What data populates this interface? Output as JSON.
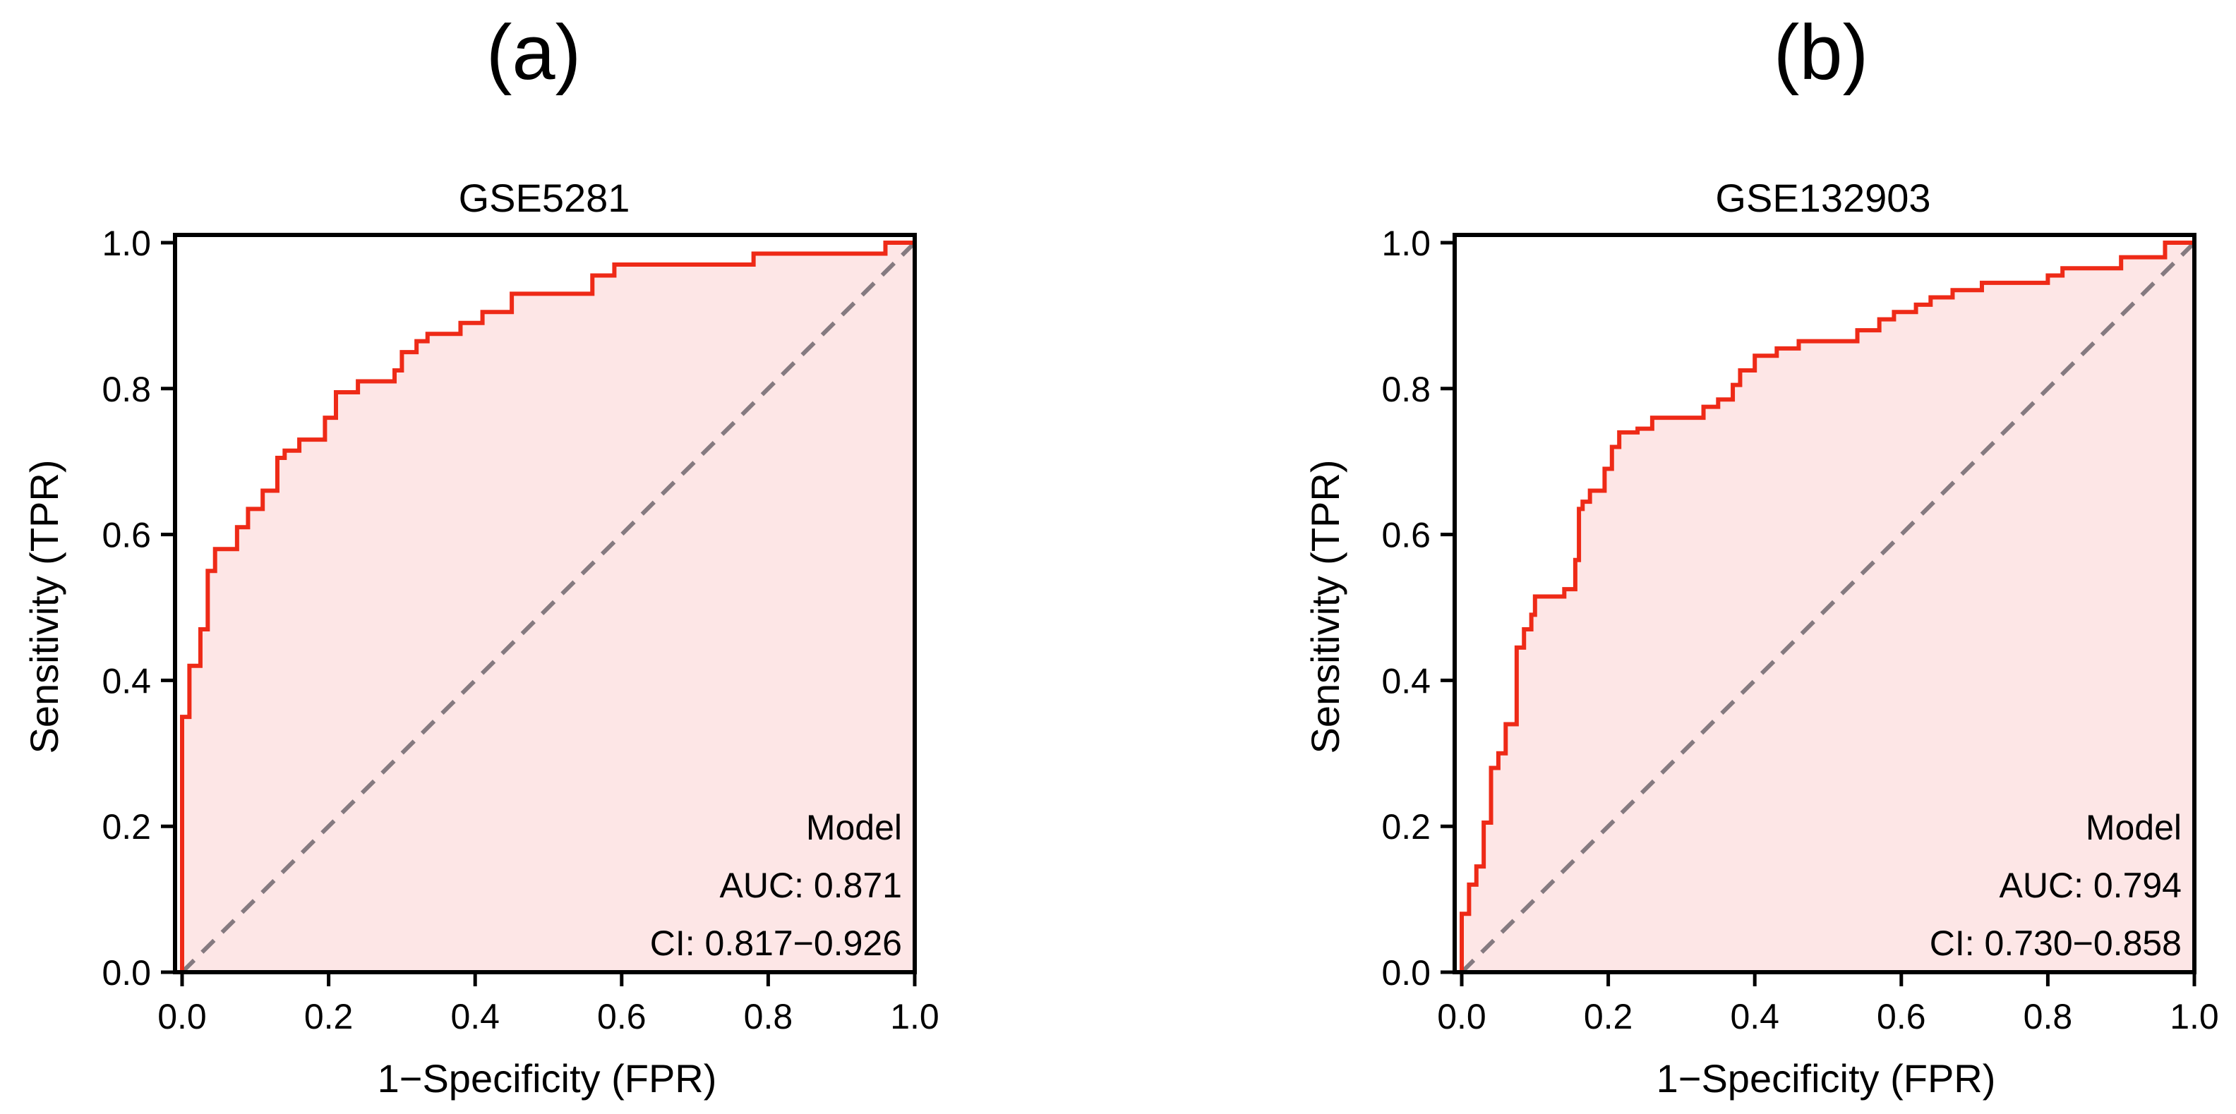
{
  "figure": {
    "panels": [
      {
        "letter": "(a)",
        "title": "GSE5281",
        "xlabel": "1−Specificity (FPR)",
        "ylabel": "Sensitivity (TPR)",
        "annotation": {
          "model": "Model",
          "auc": "AUC: 0.871",
          "ci": "CI: 0.817−0.926"
        }
      },
      {
        "letter": "(b)",
        "title": "GSE132903",
        "xlabel": "1−Specificity (FPR)",
        "ylabel": "Sensitivity (TPR)",
        "annotation": {
          "model": "Model",
          "auc": "AUC: 0.794",
          "ci": "CI: 0.730−0.858"
        }
      }
    ]
  },
  "colors": {
    "roc_line": "#ee2a17",
    "roc_fill": "#fde6e6",
    "diagonal": "#857a80",
    "axis": "#000000"
  },
  "chart_data": [
    {
      "type": "line",
      "title": "GSE5281",
      "xlabel": "1−Specificity (FPR)",
      "ylabel": "Sensitivity (TPR)",
      "xlim": [
        0,
        1
      ],
      "ylim": [
        0,
        1
      ],
      "xticks": [
        "0.0",
        "0.2",
        "0.4",
        "0.6",
        "0.8",
        "1.0"
      ],
      "yticks": [
        "0.0",
        "0.2",
        "0.4",
        "0.6",
        "0.8",
        "1.0"
      ],
      "grid": false,
      "series": [
        {
          "name": "Model",
          "x": [
            0.0,
            0.0,
            0.01,
            0.01,
            0.025,
            0.025,
            0.035,
            0.035,
            0.045,
            0.045,
            0.075,
            0.075,
            0.09,
            0.09,
            0.11,
            0.11,
            0.13,
            0.13,
            0.14,
            0.14,
            0.16,
            0.16,
            0.195,
            0.195,
            0.21,
            0.21,
            0.24,
            0.24,
            0.29,
            0.29,
            0.3,
            0.3,
            0.32,
            0.32,
            0.335,
            0.335,
            0.38,
            0.38,
            0.41,
            0.41,
            0.45,
            0.45,
            0.56,
            0.56,
            0.59,
            0.59,
            0.78,
            0.78,
            0.96,
            0.96,
            1.0
          ],
          "y": [
            0.0,
            0.35,
            0.35,
            0.42,
            0.42,
            0.47,
            0.47,
            0.55,
            0.55,
            0.58,
            0.58,
            0.61,
            0.61,
            0.635,
            0.635,
            0.66,
            0.66,
            0.705,
            0.705,
            0.715,
            0.715,
            0.73,
            0.73,
            0.76,
            0.76,
            0.795,
            0.795,
            0.81,
            0.81,
            0.825,
            0.825,
            0.85,
            0.85,
            0.865,
            0.865,
            0.875,
            0.875,
            0.89,
            0.89,
            0.905,
            0.905,
            0.93,
            0.93,
            0.955,
            0.955,
            0.97,
            0.97,
            0.985,
            0.985,
            1.0,
            1.0
          ]
        }
      ],
      "legend": "Model",
      "auc": 0.871,
      "ci": [
        0.817,
        0.926
      ]
    },
    {
      "type": "line",
      "title": "GSE132903",
      "xlabel": "1−Specificity (FPR)",
      "ylabel": "Sensitivity (TPR)",
      "xlim": [
        0,
        1
      ],
      "ylim": [
        0,
        1
      ],
      "xticks": [
        "0.0",
        "0.2",
        "0.4",
        "0.6",
        "0.8",
        "1.0"
      ],
      "yticks": [
        "0.0",
        "0.2",
        "0.4",
        "0.6",
        "0.8",
        "1.0"
      ],
      "grid": false,
      "series": [
        {
          "name": "Model",
          "x": [
            0.0,
            0.0,
            0.01,
            0.01,
            0.02,
            0.02,
            0.03,
            0.03,
            0.04,
            0.04,
            0.05,
            0.05,
            0.06,
            0.06,
            0.075,
            0.075,
            0.085,
            0.085,
            0.095,
            0.095,
            0.1,
            0.1,
            0.14,
            0.14,
            0.155,
            0.155,
            0.16,
            0.16,
            0.165,
            0.165,
            0.175,
            0.175,
            0.195,
            0.195,
            0.205,
            0.205,
            0.215,
            0.215,
            0.24,
            0.24,
            0.26,
            0.26,
            0.33,
            0.33,
            0.35,
            0.35,
            0.37,
            0.37,
            0.38,
            0.38,
            0.4,
            0.4,
            0.43,
            0.43,
            0.46,
            0.46,
            0.54,
            0.54,
            0.57,
            0.57,
            0.59,
            0.59,
            0.62,
            0.62,
            0.64,
            0.64,
            0.67,
            0.67,
            0.71,
            0.71,
            0.8,
            0.8,
            0.82,
            0.82,
            0.9,
            0.9,
            0.96,
            0.96,
            1.0
          ],
          "y": [
            0.0,
            0.08,
            0.08,
            0.12,
            0.12,
            0.145,
            0.145,
            0.205,
            0.205,
            0.28,
            0.28,
            0.3,
            0.3,
            0.34,
            0.34,
            0.445,
            0.445,
            0.47,
            0.47,
            0.49,
            0.49,
            0.515,
            0.515,
            0.525,
            0.525,
            0.565,
            0.565,
            0.635,
            0.635,
            0.645,
            0.645,
            0.66,
            0.66,
            0.69,
            0.69,
            0.72,
            0.72,
            0.74,
            0.74,
            0.745,
            0.745,
            0.76,
            0.76,
            0.775,
            0.775,
            0.785,
            0.785,
            0.805,
            0.805,
            0.825,
            0.825,
            0.845,
            0.845,
            0.855,
            0.855,
            0.865,
            0.865,
            0.88,
            0.88,
            0.895,
            0.895,
            0.905,
            0.905,
            0.915,
            0.915,
            0.925,
            0.925,
            0.935,
            0.935,
            0.945,
            0.945,
            0.955,
            0.955,
            0.965,
            0.965,
            0.98,
            0.98,
            1.0,
            1.0
          ]
        }
      ],
      "legend": "Model",
      "auc": 0.794,
      "ci": [
        0.73,
        0.858
      ]
    }
  ]
}
